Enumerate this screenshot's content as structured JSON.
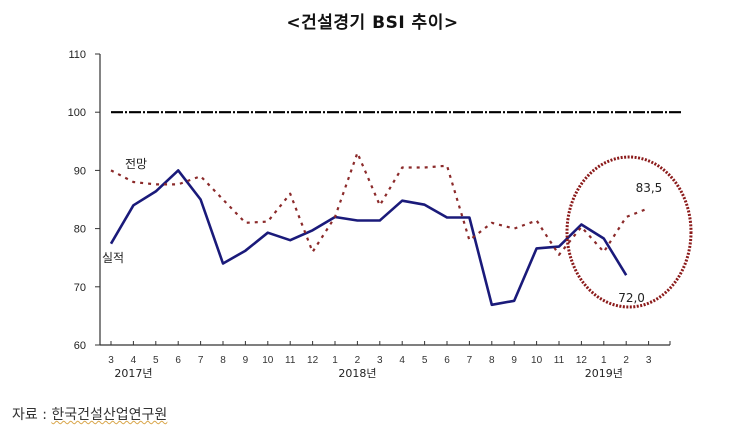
{
  "title": "<건설경기 BSI 추이>",
  "source": {
    "label": "자료 :",
    "org": "한국건설산업연구원"
  },
  "chart_data": {
    "type": "line",
    "title": "<건설경기 BSI 추이>",
    "xlabel": "",
    "ylabel": "",
    "ylim": [
      60,
      110
    ],
    "yticks": [
      60,
      70,
      80,
      90,
      100,
      110
    ],
    "categories": [
      "3",
      "4",
      "5",
      "6",
      "7",
      "8",
      "9",
      "10",
      "11",
      "12",
      "1",
      "2",
      "3",
      "4",
      "5",
      "6",
      "7",
      "8",
      "9",
      "10",
      "11",
      "12",
      "1",
      "2",
      "3"
    ],
    "year_labels": [
      {
        "label": "2017년",
        "index": 1
      },
      {
        "label": "2018년",
        "index": 11
      },
      {
        "label": "2019년",
        "index": 22
      }
    ],
    "reference_line": {
      "value": 100,
      "style": "dash-dot",
      "color": "#000000"
    },
    "series": [
      {
        "name": "실적",
        "color": "#1a1a7a",
        "style": "solid",
        "values": [
          77.4,
          84.0,
          86.4,
          90.0,
          85.0,
          74.0,
          76.2,
          79.3,
          78.0,
          79.7,
          82.0,
          81.4,
          81.4,
          84.8,
          84.1,
          81.9,
          81.9,
          66.9,
          67.6,
          76.6,
          76.9,
          80.7,
          78.3,
          72.0,
          null
        ]
      },
      {
        "name": "전망",
        "color": "#8b2a2a",
        "style": "dotted",
        "values": [
          90.0,
          88.0,
          87.6,
          87.6,
          89.0,
          85.0,
          81.0,
          81.2,
          86.0,
          76.0,
          82.0,
          93.0,
          84.0,
          90.5,
          90.5,
          90.8,
          78.0,
          81.0,
          80.0,
          81.4,
          75.5,
          80.3,
          76.0,
          82.0,
          83.5
        ]
      }
    ],
    "annotations": [
      {
        "text": "72,0",
        "series": "실적",
        "index": 23
      },
      {
        "text": "83,5",
        "series": "전망",
        "index": 24
      },
      {
        "text": "전망",
        "near_index": 0
      },
      {
        "text": "실적",
        "near_index": 0
      },
      {
        "type": "ellipse",
        "color": "#8b1a1a",
        "covers_indices": [
          21,
          24
        ]
      }
    ],
    "grid": false,
    "legend": "inline labels"
  }
}
